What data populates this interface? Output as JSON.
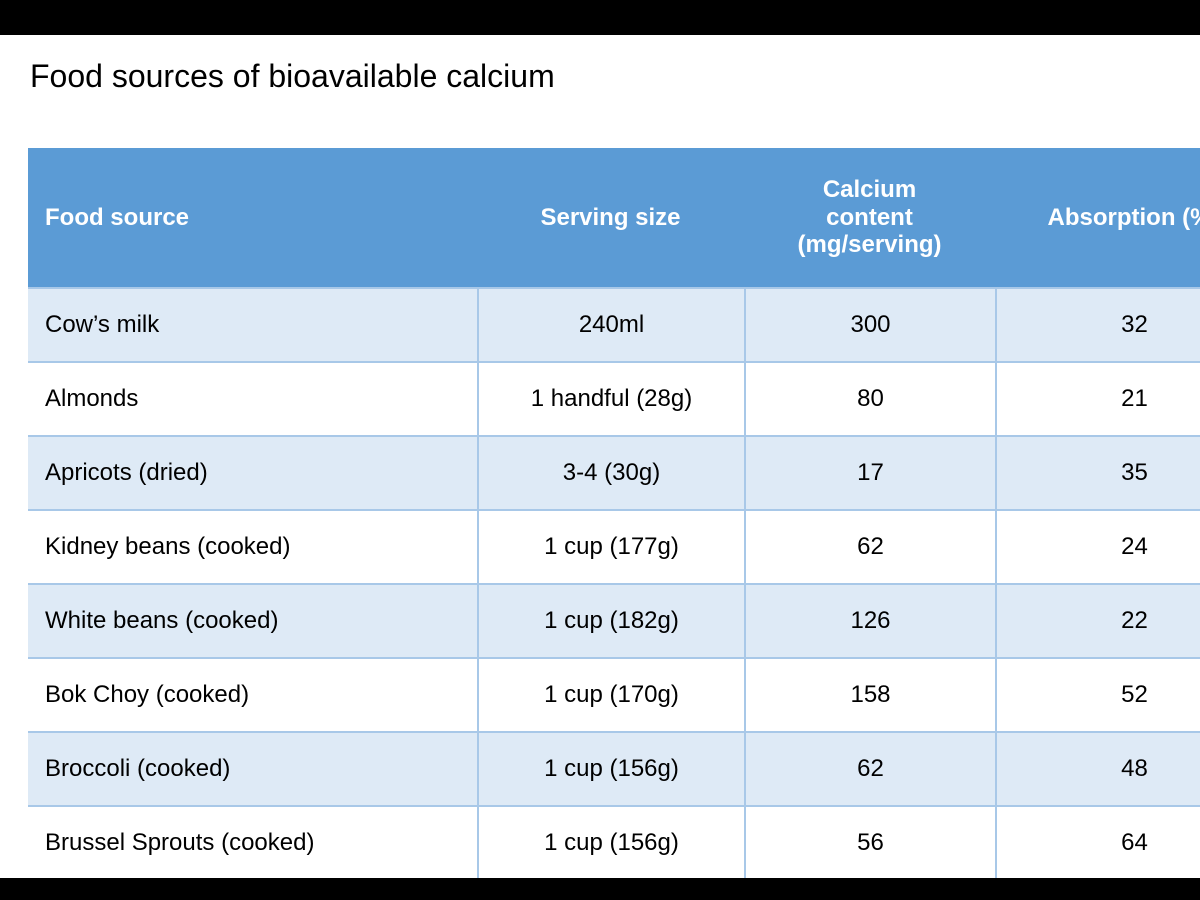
{
  "page": {
    "title": "Food sources of bioavailable calcium"
  },
  "table": {
    "columns": [
      {
        "label": "Food source",
        "align": "left"
      },
      {
        "label": "Serving size",
        "align": "center"
      },
      {
        "label": "Calcium\ncontent\n(mg/serving)",
        "align": "center"
      },
      {
        "label": "Absorption (%)",
        "align": "center"
      }
    ],
    "rows": [
      {
        "food": "Cow’s milk",
        "serving": "240ml",
        "calcium": "300",
        "absorption": "32"
      },
      {
        "food": "Almonds",
        "serving": "1 handful (28g)",
        "calcium": "80",
        "absorption": "21"
      },
      {
        "food": "Apricots (dried)",
        "serving": "3-4 (30g)",
        "calcium": "17",
        "absorption": "35"
      },
      {
        "food": "Kidney beans (cooked)",
        "serving": "1 cup (177g)",
        "calcium": "62",
        "absorption": "24"
      },
      {
        "food": "White beans (cooked)",
        "serving": "1 cup (182g)",
        "calcium": "126",
        "absorption": "22"
      },
      {
        "food": "Bok Choy (cooked)",
        "serving": "1 cup (170g)",
        "calcium": "158",
        "absorption": "52"
      },
      {
        "food": "Broccoli (cooked)",
        "serving": "1 cup (156g)",
        "calcium": "62",
        "absorption": "48"
      },
      {
        "food": "Brussel Sprouts (cooked)",
        "serving": "1 cup (156g)",
        "calcium": "56",
        "absorption": "64"
      }
    ]
  },
  "colors": {
    "header_bg": "#5B9BD5",
    "header_text": "#FFFFFF",
    "row_alt_bg": "#DEEAF6",
    "row_bg": "#FFFFFF",
    "border": "#A8C8E8",
    "text": "#000000",
    "letterbox": "#000000"
  }
}
